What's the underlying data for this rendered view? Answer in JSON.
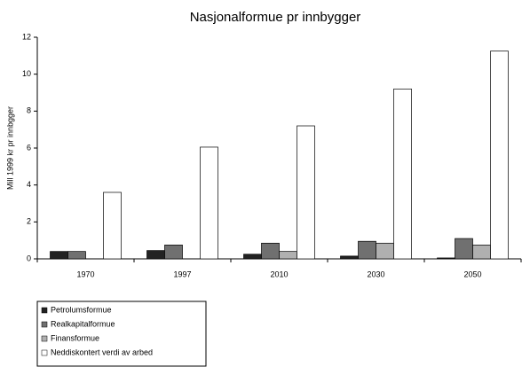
{
  "chart_data": {
    "type": "bar",
    "title": "Nasjonalformue pr innbygger",
    "y_label": "Mill 1999 kr pr innbgger",
    "categories": [
      "1970",
      "1997",
      "2010",
      "2030",
      "2050"
    ],
    "series": [
      {
        "name": "Petrolumsformue",
        "color": "#222222",
        "values": [
          0.4,
          0.45,
          0.25,
          0.15,
          0.05
        ]
      },
      {
        "name": "Realkapitalformue",
        "color": "#707070",
        "values": [
          0.4,
          0.75,
          0.85,
          0.95,
          1.1
        ]
      },
      {
        "name": "Finansformue",
        "color": "#b0b0b0",
        "values": [
          0,
          0,
          0.4,
          0.85,
          0.75
        ]
      },
      {
        "name": "Neddiskontert verdi av arbed",
        "color": "#ffffff",
        "values": [
          3.6,
          6.05,
          7.2,
          9.2,
          11.25
        ]
      }
    ],
    "ylim": [
      0,
      12
    ],
    "yticks": [
      0,
      2,
      4,
      6,
      8,
      10,
      12
    ],
    "legend": "bottom-left"
  }
}
